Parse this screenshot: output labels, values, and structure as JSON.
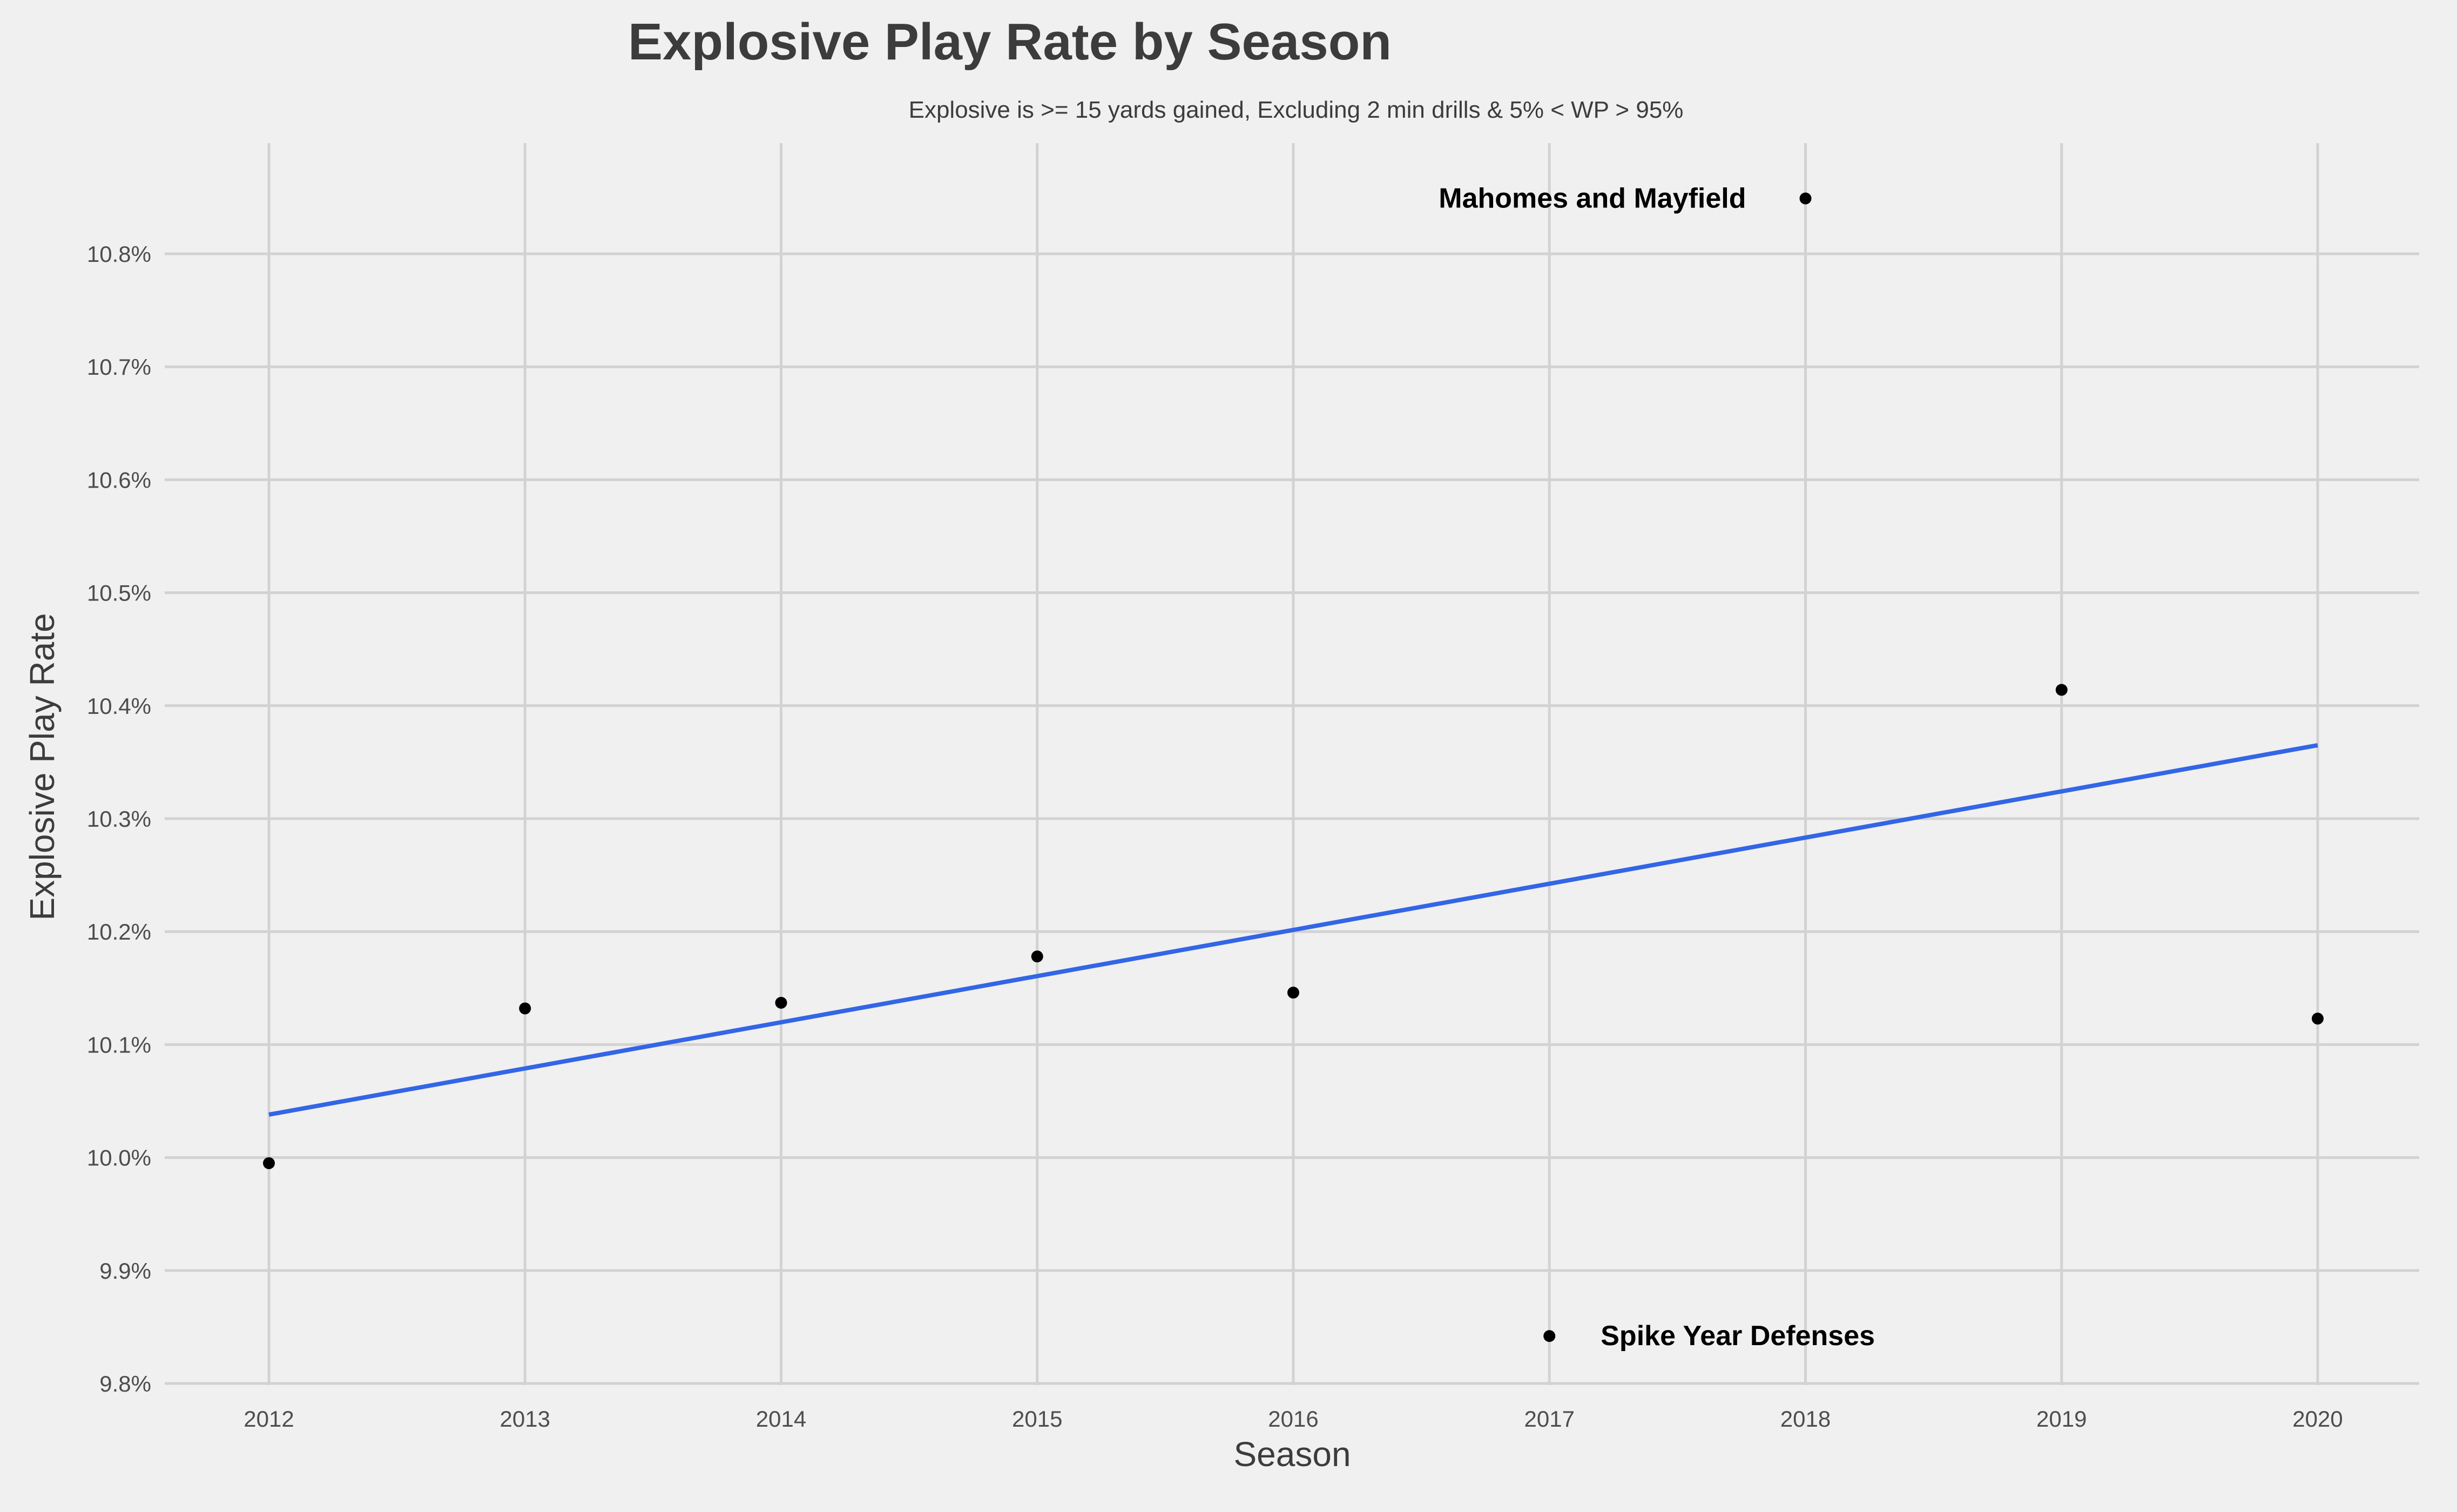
{
  "chart_data": {
    "type": "scatter",
    "title": "Explosive Play Rate by Season",
    "subtitle": "Explosive is >= 15 yards gained, Excluding 2 min drills & 5% < WP > 95%",
    "xlabel": "Season",
    "ylabel": "Explosive Play Rate",
    "xlim": [
      2011.6,
      2020.4
    ],
    "ylim": [
      9.8,
      10.9
    ],
    "x_ticks": [
      2012,
      2013,
      2014,
      2015,
      2016,
      2017,
      2018,
      2019,
      2020
    ],
    "x_tick_labels": [
      "2012",
      "2013",
      "2014",
      "2015",
      "2016",
      "2017",
      "2018",
      "2019",
      "2020"
    ],
    "y_ticks": [
      9.8,
      9.9,
      10.0,
      10.1,
      10.2,
      10.3,
      10.4,
      10.5,
      10.6,
      10.7,
      10.8
    ],
    "y_tick_labels": [
      "9.8%",
      "9.9%",
      "10.0%",
      "10.1%",
      "10.2%",
      "10.3%",
      "10.4%",
      "10.5%",
      "10.6%",
      "10.7%",
      "10.8%"
    ],
    "grid": true,
    "series": [
      {
        "type": "scatter",
        "x": [
          2012,
          2013,
          2014,
          2015,
          2016,
          2017,
          2018,
          2019,
          2020
        ],
        "y": [
          9.995,
          10.132,
          10.137,
          10.178,
          10.146,
          9.842,
          10.849,
          10.414,
          10.123
        ]
      },
      {
        "type": "line",
        "x": [
          2012,
          2020
        ],
        "y": [
          10.038,
          10.365
        ]
      }
    ],
    "annotations": [
      {
        "text": "Mahomes and Mayfield",
        "x": 2018,
        "y": 10.849,
        "side": "left"
      },
      {
        "text": "Spike Year Defenses",
        "x": 2017,
        "y": 9.842,
        "side": "right"
      }
    ],
    "colors": {
      "background": "#f0f0f0",
      "grid": "#d2d2d2",
      "points": "#000000",
      "trend_line": "#3366e6",
      "title": "#3c3c3c",
      "tick_labels": "#4d4d4d"
    }
  }
}
